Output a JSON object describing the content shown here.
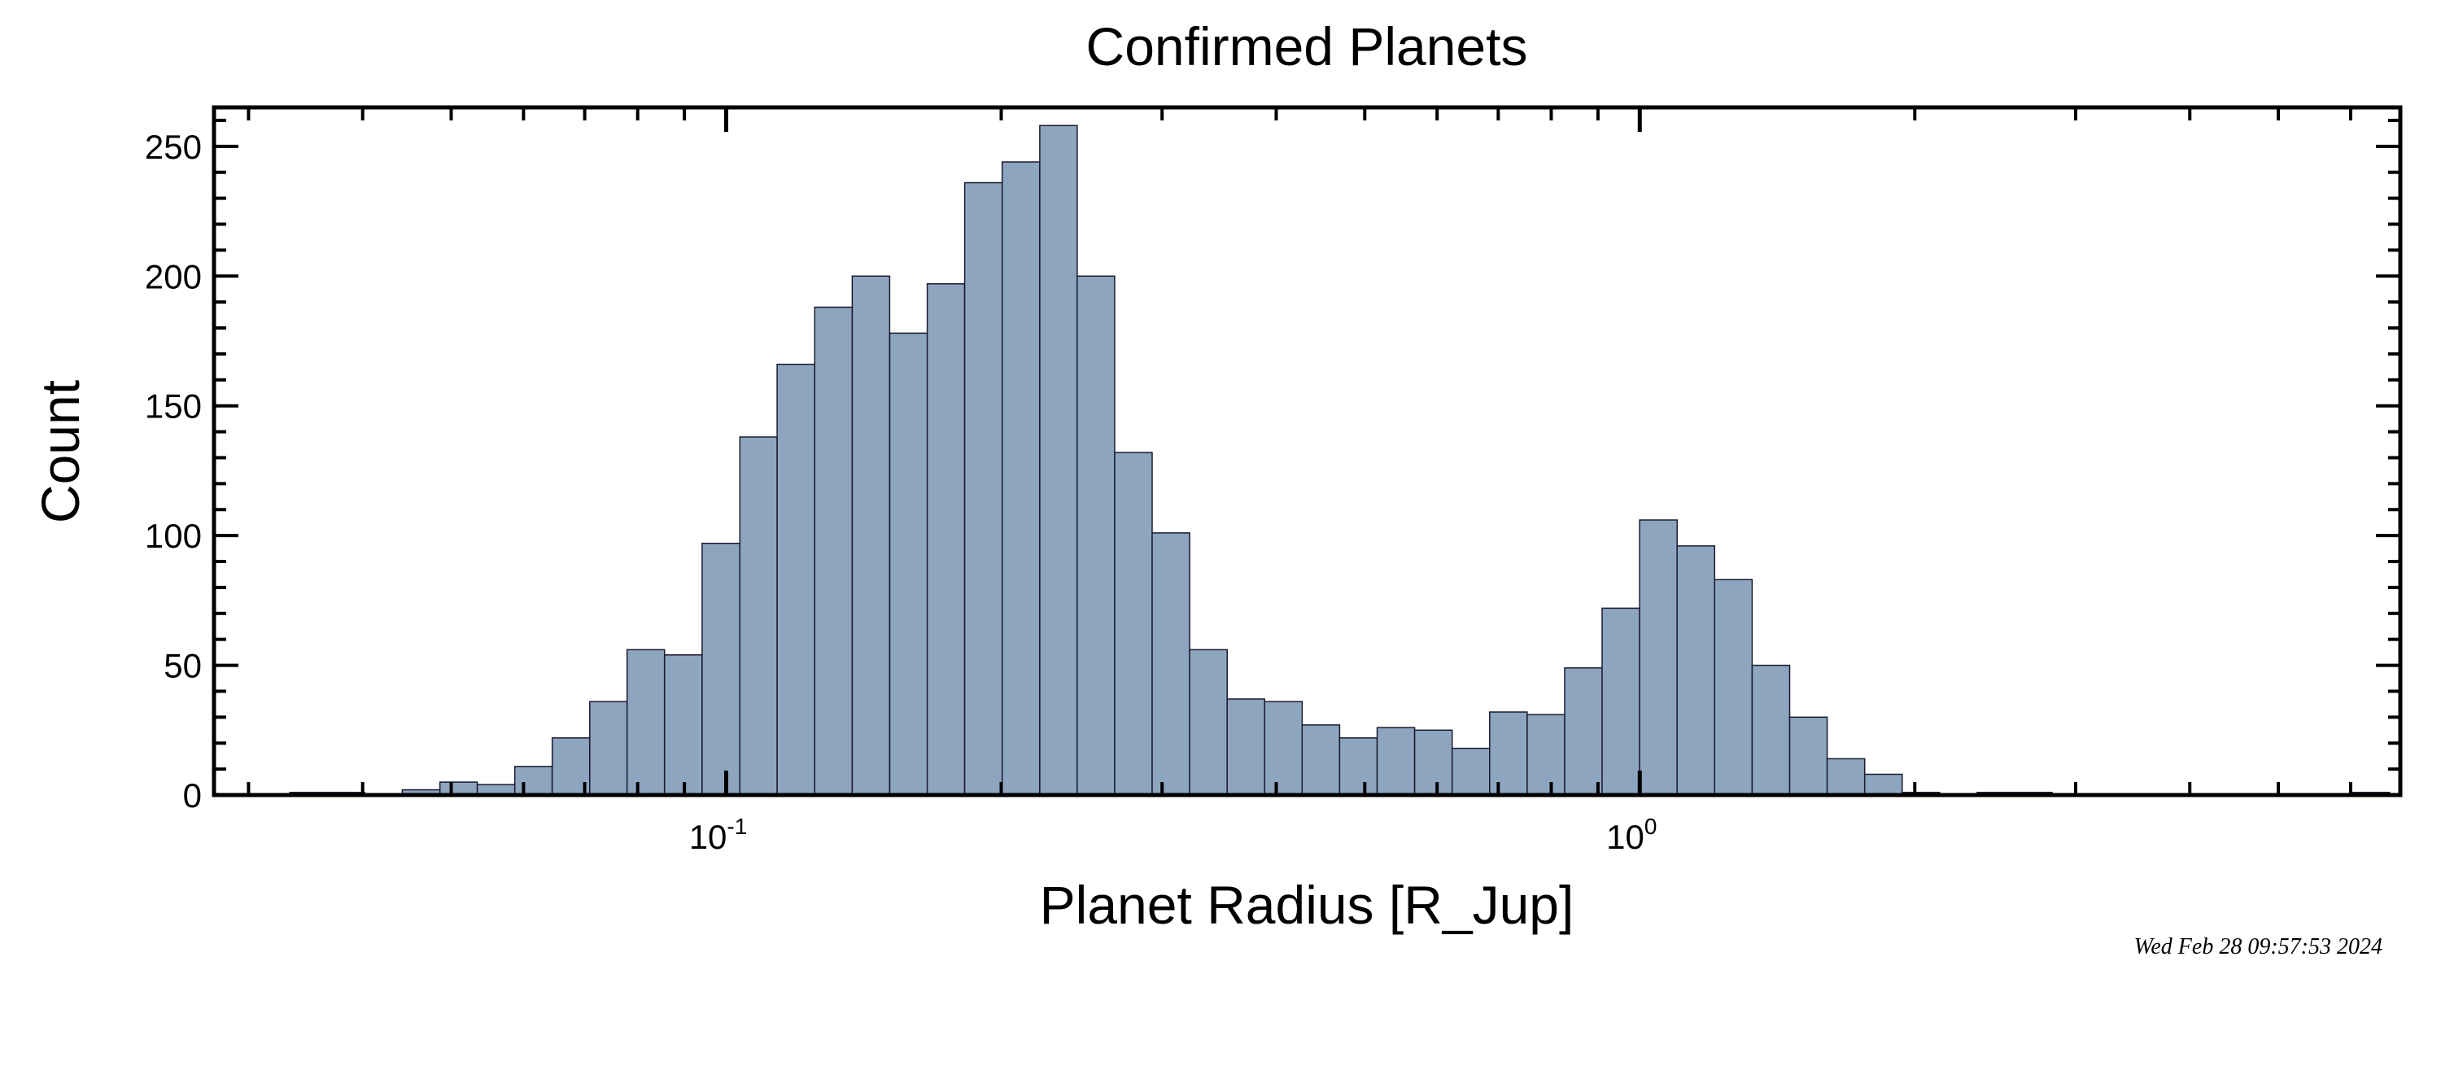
{
  "chart_data": {
    "type": "bar",
    "title": "Confirmed Planets",
    "xlabel": "Planet Radius [R_Jup]",
    "ylabel": "Count",
    "x_scale": "log",
    "xlim": [
      0.0275,
      6.8
    ],
    "ylim": [
      0,
      265
    ],
    "grid": false,
    "x_ticks": [
      {
        "value": 0.1,
        "base": "10",
        "exp": "-1"
      },
      {
        "value": 1,
        "base": "10",
        "exp": "0"
      }
    ],
    "y_ticks": [
      {
        "value": 0,
        "label": "0"
      },
      {
        "value": 50,
        "label": "50"
      },
      {
        "value": 100,
        "label": "100"
      },
      {
        "value": 150,
        "label": "150"
      },
      {
        "value": 200,
        "label": "200"
      },
      {
        "value": 250,
        "label": "250"
      }
    ],
    "bin_edges": [
      0.0275,
      0.0303,
      0.0333,
      0.0366,
      0.0402,
      0.0442,
      0.0486,
      0.0534,
      0.0587,
      0.0645,
      0.0709,
      0.0779,
      0.0856,
      0.0941,
      0.1035,
      0.1137,
      0.125,
      0.1374,
      0.151,
      0.166,
      0.1824,
      0.2005,
      0.2204,
      0.2422,
      0.2662,
      0.2926,
      0.3216,
      0.3535,
      0.3885,
      0.427,
      0.4693,
      0.5158,
      0.567,
      0.6232,
      0.685,
      0.7529,
      0.8275,
      0.9095,
      0.9997,
      1.0988,
      1.2077,
      1.3274,
      1.459,
      1.6036,
      1.7626,
      1.9373,
      2.1294,
      2.3404,
      2.5725,
      2.8275,
      3.1077,
      3.4158,
      3.7544,
      4.1266,
      4.5356,
      4.9852,
      5.4794,
      6.0226,
      6.6197
    ],
    "values": [
      0,
      0,
      1,
      1,
      0,
      2,
      5,
      4,
      11,
      22,
      36,
      56,
      54,
      97,
      138,
      166,
      188,
      200,
      178,
      197,
      236,
      244,
      258,
      200,
      132,
      101,
      56,
      37,
      36,
      27,
      22,
      26,
      25,
      18,
      32,
      31,
      49,
      72,
      106,
      96,
      83,
      50,
      30,
      14,
      8,
      1,
      0,
      1,
      1,
      0,
      0,
      0,
      0,
      0,
      0,
      0,
      0,
      1
    ],
    "bar_color": "#8ea5bf",
    "bar_edge_color": "#1a1a2e"
  },
  "timestamp": "Wed Feb 28 09:57:53 2024"
}
